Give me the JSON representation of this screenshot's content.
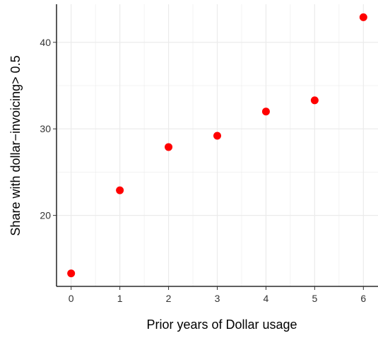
{
  "chart_data": {
    "type": "scatter",
    "xlabel": "Prior years of Dollar usage",
    "ylabel": "Share with dollar−invoicing> 0.5",
    "x": [
      0,
      1,
      2,
      3,
      4,
      5,
      6
    ],
    "y": [
      13.3,
      22.9,
      27.9,
      29.2,
      32.0,
      33.3,
      42.9
    ],
    "xticks": [
      "0",
      "1",
      "2",
      "3",
      "4",
      "5",
      "6"
    ],
    "yticks": [
      "20",
      "30",
      "40"
    ],
    "xlim": [
      -0.3,
      6.3
    ],
    "ylim": [
      11.8,
      44.4
    ],
    "grid": true,
    "point_color": "#ff0000",
    "grid_color": "#ebebeb"
  }
}
